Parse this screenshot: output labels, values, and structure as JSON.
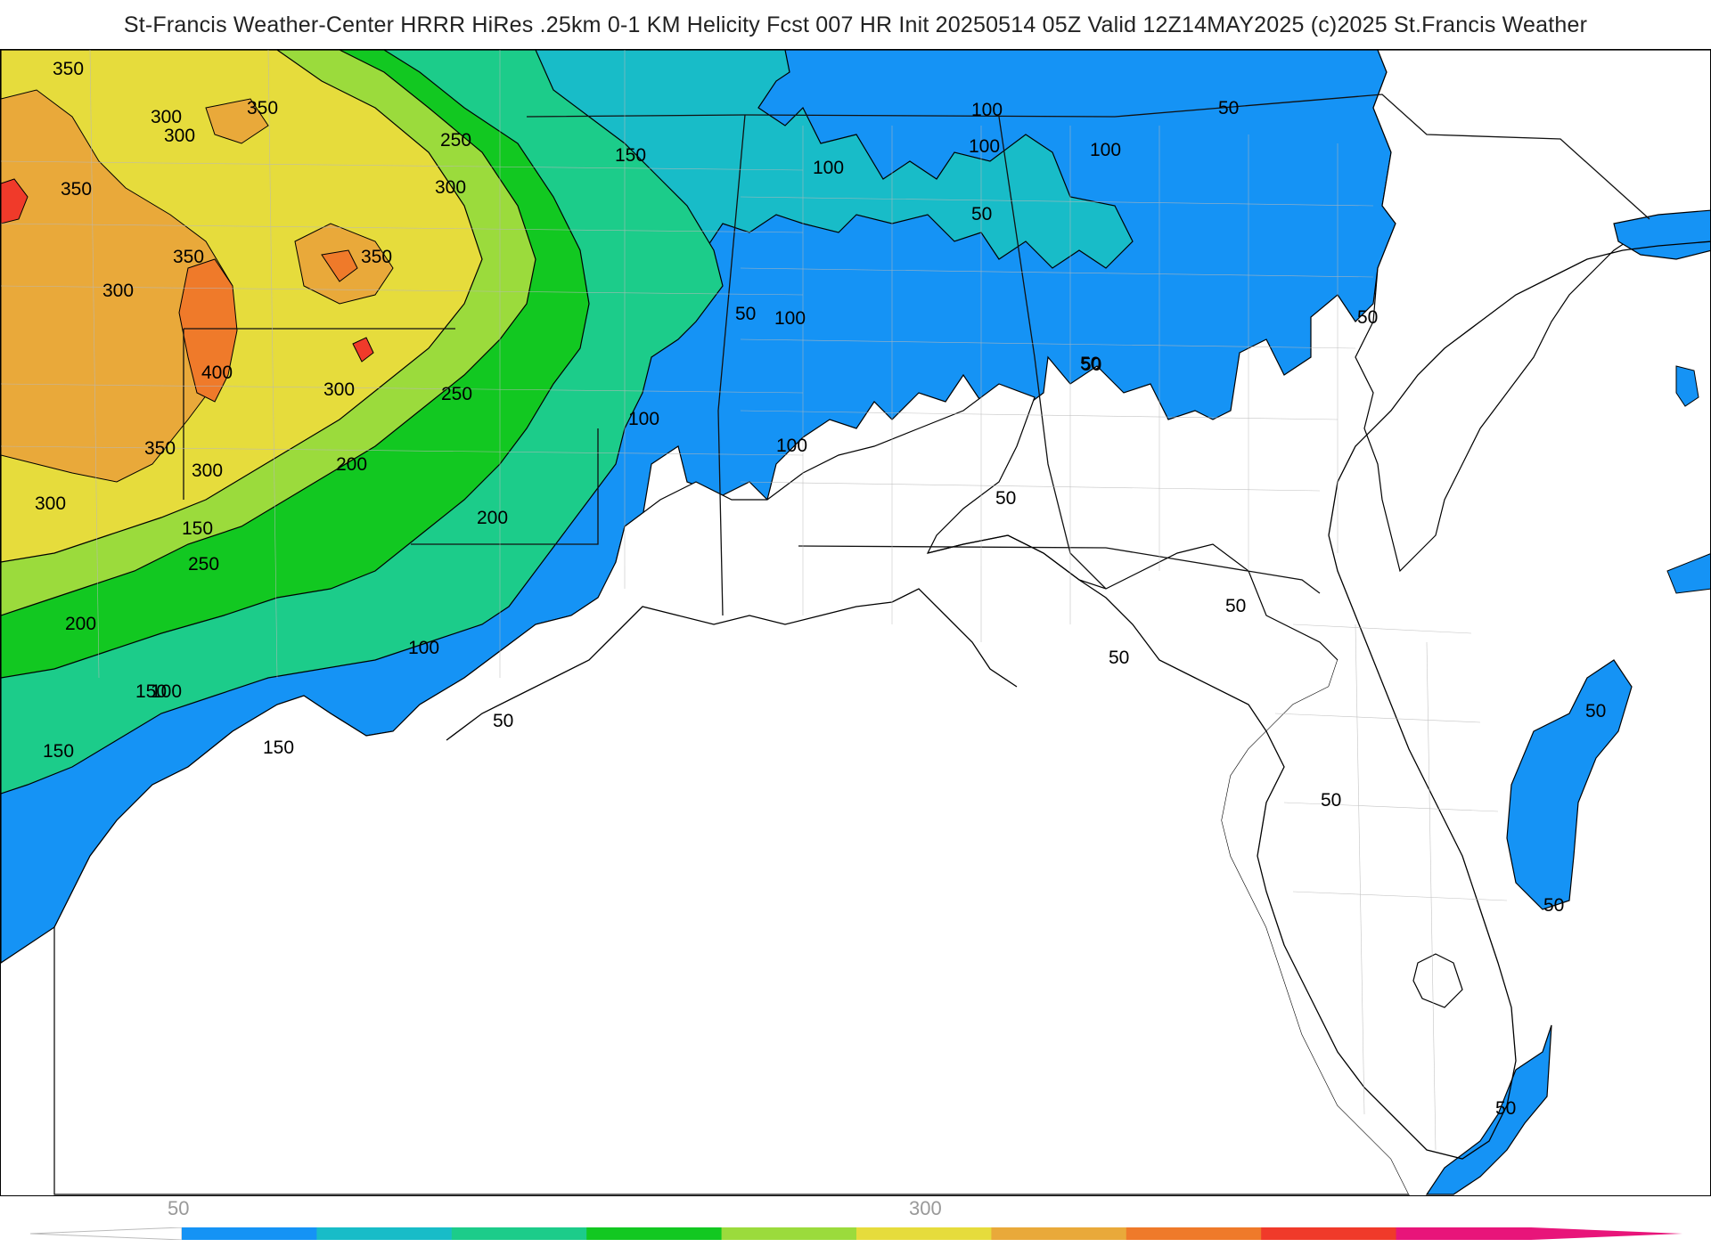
{
  "header": {
    "title": "St-Francis Weather-Center HRRR HiRes .25km 0-1 KM Helicity Fcst 007 HR Init 20250514 05Z  Valid 12Z14MAY2025    (c)2025 St.Francis Weather"
  },
  "map": {
    "contour_labels": [
      {
        "text": "350"
      },
      {
        "text": "300"
      },
      {
        "text": "350"
      },
      {
        "text": "300"
      },
      {
        "text": "350"
      },
      {
        "text": "250"
      },
      {
        "text": "300"
      },
      {
        "text": "350"
      },
      {
        "text": "300"
      },
      {
        "text": "350"
      },
      {
        "text": "400"
      },
      {
        "text": "300"
      },
      {
        "text": "350"
      },
      {
        "text": "300"
      },
      {
        "text": "200"
      },
      {
        "text": "250"
      },
      {
        "text": "300"
      },
      {
        "text": "150"
      },
      {
        "text": "200"
      },
      {
        "text": "250"
      },
      {
        "text": "200"
      },
      {
        "text": "150"
      },
      {
        "text": "100"
      },
      {
        "text": "150"
      },
      {
        "text": "100"
      },
      {
        "text": "50"
      },
      {
        "text": "100"
      },
      {
        "text": "50"
      },
      {
        "text": "150"
      },
      {
        "text": "150"
      },
      {
        "text": "100"
      },
      {
        "text": "100"
      },
      {
        "text": "50"
      },
      {
        "text": "100"
      },
      {
        "text": "100"
      },
      {
        "text": "100"
      },
      {
        "text": "100"
      },
      {
        "text": "50"
      },
      {
        "text": "50"
      },
      {
        "text": "50"
      },
      {
        "text": "50"
      },
      {
        "text": "50"
      },
      {
        "text": "50"
      },
      {
        "text": "50"
      },
      {
        "text": "50"
      },
      {
        "text": "50"
      },
      {
        "text": "50"
      },
      {
        "text": "50"
      }
    ],
    "fill_colors": {
      "c50": "#1593f5",
      "c100": "#18bcc8",
      "c150": "#1ccc8a",
      "c200": "#12c821",
      "c250": "#9bdb3c",
      "c300": "#e6dc3c",
      "c350": "#e9a93a",
      "c400": "#ef7a2a",
      "c450": "#f03a2a"
    }
  },
  "colorbar": {
    "labels": [
      "50",
      "300"
    ],
    "colors": [
      "#1593f5",
      "#18bcc8",
      "#1ccc8a",
      "#12c821",
      "#9bdb3c",
      "#e6dc3c",
      "#e9a93a",
      "#ef7a2a",
      "#f03a2a",
      "#e8157a"
    ]
  }
}
